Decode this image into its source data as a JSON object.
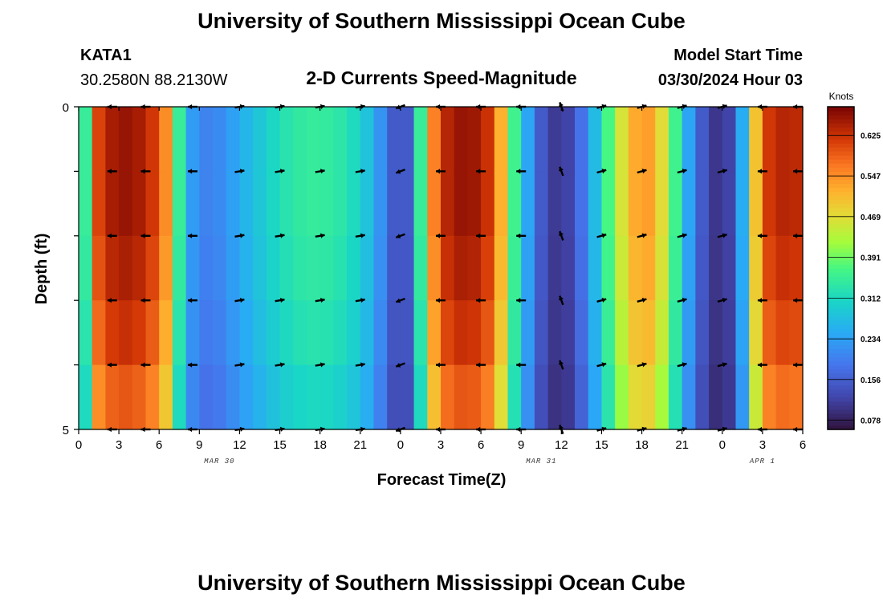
{
  "header": {
    "title": "University of Southern Mississippi Ocean Cube",
    "station": "KATA1",
    "coords": "30.2580N  88.2130W",
    "subtitle": "2-D Currents Speed-Magnitude",
    "model_label": "Model Start Time",
    "model_time": "03/30/2024 Hour 03"
  },
  "footer": {
    "title": "University of Southern Mississippi Ocean Cube"
  },
  "chart_data": {
    "type": "heatmap",
    "title": "2-D Currents Speed-Magnitude",
    "xlabel": "Forecast Time(Z)",
    "ylabel": "Depth (ft)",
    "units": "Knots",
    "xlim": [
      0,
      54
    ],
    "ylim": [
      0,
      5
    ],
    "x_ticks": [
      0,
      3,
      6,
      9,
      12,
      15,
      18,
      21,
      24,
      27,
      30,
      33,
      36,
      39,
      42,
      45,
      48,
      51,
      54
    ],
    "x_tick_labels": [
      "0",
      "3",
      "6",
      "9",
      "12",
      "15",
      "18",
      "21",
      "0",
      "3",
      "6",
      "9",
      "12",
      "15",
      "18",
      "21",
      "0",
      "3",
      "6"
    ],
    "y_tick_labels": [
      "0",
      "5"
    ],
    "date_labels": [
      {
        "hour": 10.5,
        "label": "MAR 30"
      },
      {
        "hour": 34.5,
        "label": "MAR 31"
      },
      {
        "hour": 51,
        "label": "APR 1"
      }
    ],
    "colorbar": {
      "min": 0.06,
      "max": 0.68,
      "ticks": [
        "0.078",
        "0.156",
        "0.234",
        "0.312",
        "0.391",
        "0.469",
        "0.547",
        "0.625"
      ]
    },
    "speed_profile": [
      [
        0,
        0.3
      ],
      [
        0.5,
        0.35
      ],
      [
        1,
        0.58
      ],
      [
        2,
        0.64
      ],
      [
        3,
        0.66
      ],
      [
        4,
        0.66
      ],
      [
        5,
        0.64
      ],
      [
        6,
        0.6
      ],
      [
        6.5,
        0.55
      ],
      [
        7,
        0.45
      ],
      [
        7.5,
        0.35
      ],
      [
        8,
        0.26
      ],
      [
        9,
        0.2
      ],
      [
        10,
        0.2
      ],
      [
        11,
        0.22
      ],
      [
        12,
        0.25
      ],
      [
        14,
        0.3
      ],
      [
        16,
        0.34
      ],
      [
        18,
        0.35
      ],
      [
        20,
        0.33
      ],
      [
        21,
        0.3
      ],
      [
        22,
        0.26
      ],
      [
        23,
        0.18
      ],
      [
        24,
        0.12
      ],
      [
        24.5,
        0.15
      ],
      [
        25,
        0.22
      ],
      [
        25.5,
        0.35
      ],
      [
        26,
        0.5
      ],
      [
        27,
        0.62
      ],
      [
        28,
        0.66
      ],
      [
        29,
        0.66
      ],
      [
        30,
        0.65
      ],
      [
        31,
        0.6
      ],
      [
        31.5,
        0.52
      ],
      [
        32,
        0.42
      ],
      [
        33,
        0.3
      ],
      [
        34,
        0.18
      ],
      [
        35,
        0.12
      ],
      [
        36,
        0.1
      ],
      [
        37,
        0.14
      ],
      [
        38,
        0.22
      ],
      [
        39,
        0.32
      ],
      [
        40,
        0.42
      ],
      [
        41,
        0.5
      ],
      [
        42,
        0.55
      ],
      [
        43,
        0.52
      ],
      [
        44,
        0.42
      ],
      [
        45,
        0.3
      ],
      [
        46,
        0.18
      ],
      [
        47,
        0.12
      ],
      [
        48,
        0.09
      ],
      [
        49,
        0.15
      ],
      [
        50,
        0.35
      ],
      [
        50.5,
        0.5
      ],
      [
        51,
        0.6
      ],
      [
        52,
        0.64
      ],
      [
        53,
        0.64
      ],
      [
        54,
        0.63
      ]
    ],
    "depth_factors": [
      1.0,
      1.0,
      0.98,
      0.95,
      0.9
    ],
    "depth_rows": 5,
    "arrow_hours": [
      2.5,
      5,
      8.5,
      12,
      15,
      18,
      21,
      24,
      27,
      30,
      33,
      36,
      39,
      42,
      45,
      48,
      51,
      54
    ],
    "arrow_depth_rows": [
      0,
      1,
      2,
      3,
      4,
      5
    ],
    "arrow_angles": {
      "segments": [
        {
          "from": 0,
          "to": 10.5,
          "angle": 180
        },
        {
          "from": 10.5,
          "to": 23,
          "angle": 10
        },
        {
          "from": 23,
          "to": 25,
          "angle": 200
        },
        {
          "from": 25,
          "to": 33.5,
          "angle": 180
        },
        {
          "from": 33.5,
          "to": 37,
          "angle": 110
        },
        {
          "from": 37,
          "to": 48.5,
          "angle": 15
        },
        {
          "from": 48.5,
          "to": 55,
          "angle": 180
        }
      ]
    }
  }
}
